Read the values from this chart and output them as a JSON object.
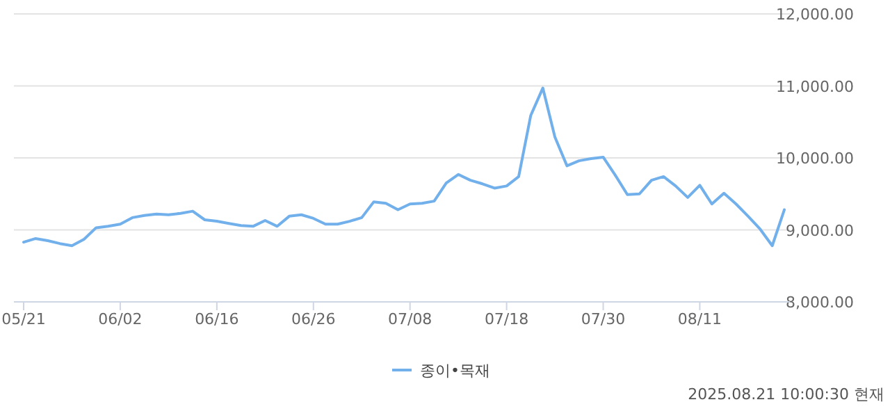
{
  "chart_data": {
    "type": "line",
    "categories": [
      "05/21",
      null,
      null,
      null,
      null,
      null,
      null,
      null,
      "06/02",
      null,
      null,
      null,
      null,
      null,
      null,
      null,
      "06/16",
      null,
      null,
      null,
      null,
      null,
      null,
      null,
      "06/26",
      null,
      null,
      null,
      null,
      null,
      null,
      null,
      "07/08",
      null,
      null,
      null,
      null,
      null,
      null,
      null,
      "07/18",
      null,
      null,
      null,
      null,
      null,
      null,
      null,
      "07/30",
      null,
      null,
      null,
      null,
      null,
      null,
      null,
      "08/11",
      null,
      null,
      null,
      null,
      null,
      null,
      null
    ],
    "series": [
      {
        "name": "종이•목재",
        "color": "#72b0ec",
        "values": [
          8830,
          8880,
          8850,
          8810,
          8780,
          8870,
          9030,
          9050,
          9080,
          9170,
          9200,
          9220,
          9210,
          9230,
          9260,
          9140,
          9120,
          9090,
          9060,
          9050,
          9130,
          9050,
          9190,
          9210,
          9160,
          9080,
          9080,
          9120,
          9170,
          9390,
          9370,
          9280,
          9360,
          9370,
          9400,
          9650,
          9770,
          9690,
          9640,
          9580,
          9610,
          9740,
          10590,
          10970,
          10290,
          9890,
          9960,
          9990,
          10010,
          9760,
          9490,
          9500,
          9690,
          9740,
          9610,
          9450,
          9620,
          9360,
          9510,
          9360,
          9190,
          9010,
          8780,
          9280
        ]
      }
    ],
    "ylim": [
      8000,
      12000
    ],
    "yticks": [
      {
        "value": 8000,
        "label": "8,000.00"
      },
      {
        "value": 9000,
        "label": "9,000.00"
      },
      {
        "value": 10000,
        "label": "10,000.00"
      },
      {
        "value": 11000,
        "label": "11,000.00"
      },
      {
        "value": 12000,
        "label": "12,000.00"
      }
    ],
    "grid": "y",
    "legend": "bottom",
    "annotations": [
      "2025.08.21 10:00:30 현재"
    ]
  }
}
